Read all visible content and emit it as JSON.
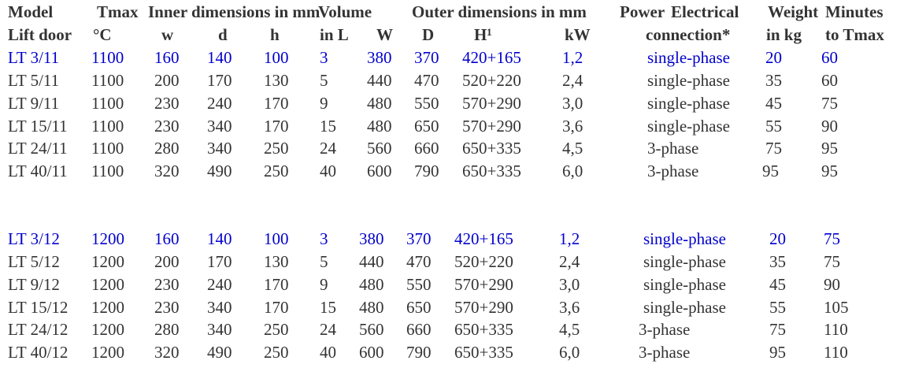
{
  "header": {
    "line1": {
      "model": "Model",
      "tmax": "Tmax",
      "inner": "Inner dimensions in mm",
      "volume": "Volume",
      "outer": "Outer dimensions in mm",
      "power": "Power",
      "electrical": "Electrical",
      "weight": "Weight",
      "minutes": "Minutes"
    },
    "line2": {
      "model": "Lift door",
      "tmax": "°C",
      "w": "w",
      "d": "d",
      "h": "h",
      "volume": "in L",
      "W": "W",
      "D": "D",
      "H": "H¹",
      "power": "kW",
      "electrical": "connection*",
      "weight": "in kg",
      "minutes": "to Tmax"
    }
  },
  "highlight_color": "#0000cc",
  "text_color": "#333333",
  "group1": [
    {
      "model": "LT 3/11",
      "tmax": "1100",
      "w": "160",
      "d": "140",
      "h": "100",
      "volume": "3",
      "W": "380",
      "D": "370",
      "H": "420+165",
      "power": "1,2",
      "connection": "single-phase",
      "weight": "20",
      "minutes": "60",
      "highlight": true
    },
    {
      "model": "LT 5/11",
      "tmax": "1100",
      "w": "200",
      "d": "170",
      "h": "130",
      "volume": "5",
      "W": "440",
      "D": "470",
      "H": "520+220",
      "power": "2,4",
      "connection": "single-phase",
      "weight": "35",
      "minutes": "60",
      "highlight": false
    },
    {
      "model": "LT 9/11",
      "tmax": "1100",
      "w": "230",
      "d": "240",
      "h": "170",
      "volume": "9",
      "W": "480",
      "D": "550",
      "H": "570+290",
      "power": "3,0",
      "connection": "single-phase",
      "weight": "45",
      "minutes": "75",
      "highlight": false
    },
    {
      "model": "LT 15/11",
      "tmax": "1100",
      "w": "230",
      "d": "340",
      "h": "170",
      "volume": "15",
      "W": "480",
      "D": "650",
      "H": "570+290",
      "power": "3,6",
      "connection": "single-phase",
      "weight": "55",
      "minutes": "90",
      "highlight": false
    },
    {
      "model": "LT 24/11",
      "tmax": "1100",
      "w": "280",
      "d": "340",
      "h": "250",
      "volume": "24",
      "W": "560",
      "D": "660",
      "H": "650+335",
      "power": "4,5",
      "connection": "3-phase",
      "weight": "75",
      "minutes": "95",
      "highlight": false
    },
    {
      "model": "LT 40/11",
      "tmax": "1100",
      "w": "320",
      "d": "490",
      "h": "250",
      "volume": "40",
      "W": "600",
      "D": "790",
      "H": "650+335",
      "power": "6,0",
      "connection": "3-phase",
      "weight": "95",
      "minutes": "95",
      "highlight": false
    }
  ],
  "group2": [
    {
      "model": "LT 3/12",
      "tmax": "1200",
      "w": "160",
      "d": "140",
      "h": "100",
      "volume": "3",
      "W": "380",
      "D": "370",
      "H": "420+165",
      "power": "1,2",
      "connection": "single-phase",
      "weight": "20",
      "minutes": "75",
      "highlight": true
    },
    {
      "model": "LT 5/12",
      "tmax": "1200",
      "w": "200",
      "d": "170",
      "h": "130",
      "volume": "5",
      "W": "440",
      "D": "470",
      "H": "520+220",
      "power": "2,4",
      "connection": "single-phase",
      "weight": "35",
      "minutes": "75",
      "highlight": false
    },
    {
      "model": "LT 9/12",
      "tmax": "1200",
      "w": "230",
      "d": "240",
      "h": "170",
      "volume": "9",
      "W": "480",
      "D": "550",
      "H": "570+290",
      "power": "3,0",
      "connection": "single-phase",
      "weight": "45",
      "minutes": "90",
      "highlight": false
    },
    {
      "model": "LT 15/12",
      "tmax": "1200",
      "w": "230",
      "d": "340",
      "h": "170",
      "volume": "15",
      "W": "480",
      "D": "650",
      "H": "570+290",
      "power": "3,6",
      "connection": "single-phase",
      "weight": "55",
      "minutes": "105",
      "highlight": false
    },
    {
      "model": "LT 24/12",
      "tmax": "1200",
      "w": "280",
      "d": "340",
      "h": "250",
      "volume": "24",
      "W": "560",
      "D": "660",
      "H": "650+335",
      "power": "4,5",
      "connection": "3-phase",
      "weight": "75",
      "minutes": "110",
      "highlight": false
    },
    {
      "model": "LT 40/12",
      "tmax": "1200",
      "w": "320",
      "d": "490",
      "h": "250",
      "volume": "40",
      "W": "600",
      "D": "790",
      "H": "650+335",
      "power": "6,0",
      "connection": "3-phase",
      "weight": "95",
      "minutes": "110",
      "highlight": false
    }
  ]
}
